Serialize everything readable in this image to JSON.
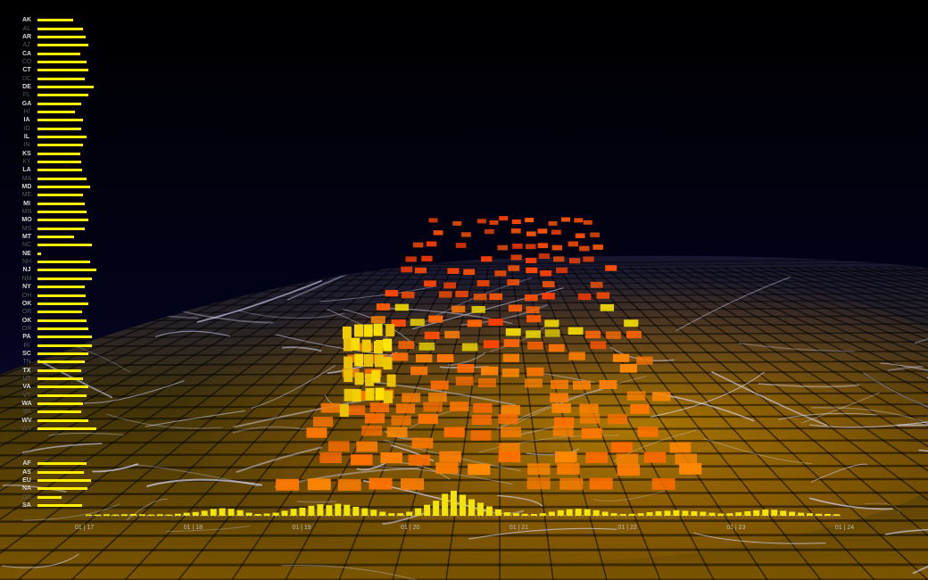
{
  "state_codes": [
    {
      "code": "AK",
      "level": 0.6,
      "highlight": true
    },
    {
      "code": "AL",
      "level": 0.78,
      "highlight": false
    },
    {
      "code": "AR",
      "level": 0.82,
      "highlight": true
    },
    {
      "code": "AZ",
      "level": 0.86,
      "highlight": false
    },
    {
      "code": "CA",
      "level": 0.72,
      "highlight": true
    },
    {
      "code": "CO",
      "level": 0.84,
      "highlight": false
    },
    {
      "code": "CT",
      "level": 0.86,
      "highlight": true
    },
    {
      "code": "DC",
      "level": 0.8,
      "highlight": false
    },
    {
      "code": "DE",
      "level": 0.96,
      "highlight": true
    },
    {
      "code": "FL",
      "level": 0.86,
      "highlight": false
    },
    {
      "code": "GA",
      "level": 0.74,
      "highlight": true
    },
    {
      "code": "HI",
      "level": 0.64,
      "highlight": false
    },
    {
      "code": "IA",
      "level": 0.78,
      "highlight": true
    },
    {
      "code": "ID",
      "level": 0.74,
      "highlight": false
    },
    {
      "code": "IL",
      "level": 0.84,
      "highlight": true
    },
    {
      "code": "IN",
      "level": 0.78,
      "highlight": false
    },
    {
      "code": "KS",
      "level": 0.72,
      "highlight": true
    },
    {
      "code": "KY",
      "level": 0.74,
      "highlight": false
    },
    {
      "code": "LA",
      "level": 0.76,
      "highlight": true
    },
    {
      "code": "MA",
      "level": 0.84,
      "highlight": false
    },
    {
      "code": "MD",
      "level": 0.9,
      "highlight": true
    },
    {
      "code": "ME",
      "level": 0.78,
      "highlight": false
    },
    {
      "code": "MI",
      "level": 0.8,
      "highlight": true
    },
    {
      "code": "MN",
      "level": 0.84,
      "highlight": false
    },
    {
      "code": "MO",
      "level": 0.86,
      "highlight": true
    },
    {
      "code": "MS",
      "level": 0.8,
      "highlight": false
    },
    {
      "code": "MT",
      "level": 0.62,
      "highlight": true
    },
    {
      "code": "NC",
      "level": 0.92,
      "highlight": false
    },
    {
      "code": "NE",
      "level": 0.06,
      "highlight": true
    },
    {
      "code": "NH",
      "level": 0.9,
      "highlight": false
    },
    {
      "code": "NJ",
      "level": 1.0,
      "highlight": true
    },
    {
      "code": "NM",
      "level": 0.92,
      "highlight": false
    },
    {
      "code": "NY",
      "level": 0.8,
      "highlight": true
    },
    {
      "code": "OH",
      "level": 0.82,
      "highlight": false
    },
    {
      "code": "OK",
      "level": 0.86,
      "highlight": true
    },
    {
      "code": "OR",
      "level": 0.76,
      "highlight": false
    },
    {
      "code": "OK",
      "level": 0.84,
      "highlight": true
    },
    {
      "code": "OR",
      "level": 0.86,
      "highlight": false
    },
    {
      "code": "PA",
      "level": 0.92,
      "highlight": true
    },
    {
      "code": "RI",
      "level": 0.92,
      "highlight": false
    },
    {
      "code": "SC",
      "level": 0.86,
      "highlight": true
    },
    {
      "code": "TN",
      "level": 0.8,
      "highlight": false
    },
    {
      "code": "TX",
      "level": 0.74,
      "highlight": true
    },
    {
      "code": "UT",
      "level": 0.78,
      "highlight": false
    },
    {
      "code": "VA",
      "level": 0.86,
      "highlight": true
    },
    {
      "code": "VT",
      "level": 0.84,
      "highlight": false
    },
    {
      "code": "WA",
      "level": 0.78,
      "highlight": true
    },
    {
      "code": "WI",
      "level": 0.74,
      "highlight": false
    },
    {
      "code": "WV",
      "level": 0.86,
      "highlight": true
    },
    {
      "code": "WY",
      "level": 1.0,
      "highlight": false
    }
  ],
  "divider_text": "—",
  "continent_codes": [
    {
      "code": "AF",
      "level": 0.86,
      "highlight": true
    },
    {
      "code": "AS",
      "level": 0.82,
      "highlight": true
    },
    {
      "code": "EU",
      "level": 0.94,
      "highlight": true
    },
    {
      "code": "NA",
      "level": 0.88,
      "highlight": true
    },
    {
      "code": "OC",
      "level": 0.42,
      "highlight": false
    },
    {
      "code": "SA",
      "level": 0.78,
      "highlight": true
    }
  ],
  "timeline": {
    "date_labels": [
      "01 | 17",
      "01 | 18",
      "01 | 19",
      "01 | 20",
      "01 | 21",
      "01 | 22",
      "01 | 23",
      "01 | 24"
    ],
    "activity": [
      0.05,
      0.05,
      0.06,
      0.05,
      0.06,
      0.07,
      0.06,
      0.05,
      0.06,
      0.05,
      0.08,
      0.12,
      0.15,
      0.2,
      0.27,
      0.3,
      0.28,
      0.22,
      0.12,
      0.07,
      0.09,
      0.12,
      0.2,
      0.28,
      0.32,
      0.4,
      0.46,
      0.42,
      0.48,
      0.44,
      0.36,
      0.3,
      0.24,
      0.16,
      0.1,
      0.1,
      0.16,
      0.3,
      0.44,
      0.6,
      0.88,
      1.0,
      0.84,
      0.66,
      0.52,
      0.38,
      0.25,
      0.14,
      0.1,
      0.08,
      0.07,
      0.1,
      0.16,
      0.22,
      0.26,
      0.28,
      0.26,
      0.22,
      0.16,
      0.1,
      0.07,
      0.08,
      0.1,
      0.14,
      0.18,
      0.2,
      0.22,
      0.2,
      0.18,
      0.16,
      0.12,
      0.09,
      0.1,
      0.14,
      0.18,
      0.22,
      0.25,
      0.24,
      0.2,
      0.16,
      0.12,
      0.1,
      0.08,
      0.07,
      0.06
    ]
  },
  "colors": {
    "bar": "#ffee00",
    "timeline_bar": "#f1e400",
    "baseline": "#c8c8c8",
    "sky_top": "#000000",
    "sky_bottom": "#0a0a3a",
    "ground": "#6b4b00",
    "street_lines": "#dcdcff",
    "hot": "#ff3a00",
    "mid": "#ff8a00",
    "cool": "#ffe600"
  }
}
